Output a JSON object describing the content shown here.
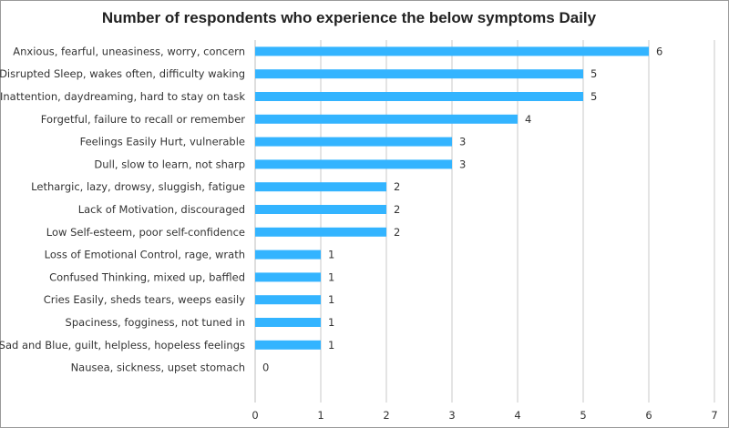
{
  "chart_data": {
    "type": "bar",
    "orientation": "horizontal",
    "title": "Number of respondents who experience the below symptoms Daily",
    "categories": [
      "Anxious, fearful, uneasiness, worry, concern",
      "Disrupted Sleep, wakes often, difficulty waking",
      "Inattention, daydreaming, hard to stay on task",
      "Forgetful, failure to recall or remember",
      "Feelings Easily Hurt, vulnerable",
      "Dull, slow to learn, not sharp",
      "Lethargic, lazy, drowsy, sluggish, fatigue",
      "Lack of Motivation, discouraged",
      "Low Self-esteem, poor self-confidence",
      "Loss of Emotional Control, rage, wrath",
      "Confused Thinking, mixed up, baffled",
      "Cries Easily, sheds tears, weeps easily",
      "Spaciness, fogginess, not tuned in",
      "Sad and Blue, guilt, helpless, hopeless feelings",
      "Nausea, sickness, upset stomach"
    ],
    "values": [
      6,
      5,
      5,
      4,
      3,
      3,
      2,
      2,
      2,
      1,
      1,
      1,
      1,
      1,
      0
    ],
    "xlim": [
      0,
      7
    ],
    "xticks": [
      0,
      1,
      2,
      3,
      4,
      5,
      6,
      7
    ],
    "grid": "vertical",
    "data_labels": true,
    "bar_color": "#33b4ff",
    "grid_color": "#c8c8c8"
  }
}
